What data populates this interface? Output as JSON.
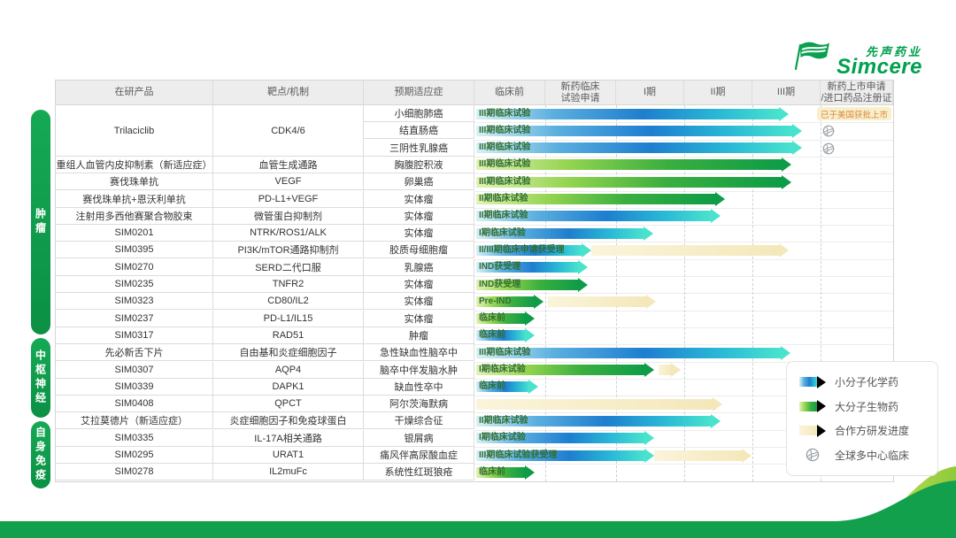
{
  "logo": {
    "company_cn": "先声药业",
    "company_en": "Simcere"
  },
  "legend": {
    "items": [
      {
        "icon": "chem-arrow-icon",
        "label": "小分子化学药"
      },
      {
        "icon": "bio-arrow-icon",
        "label": "大分子生物药"
      },
      {
        "icon": "partner-arrow-icon",
        "label": "合作方研发进度"
      },
      {
        "icon": "globe-icon",
        "label": "全球多中心临床"
      }
    ]
  },
  "colors": {
    "brand_green": "#00a04e",
    "chem_blue": "#1e7ecf",
    "bio_green": "#0e9c47",
    "partner_cream": "#f4e8ba",
    "approved_text": "#d9883a"
  },
  "chart_data": {
    "type": "table",
    "title": "",
    "columns": [
      "在研产品",
      "靶点/机制",
      "预期适应症",
      "临床前",
      "新药临床\n试验申请",
      "I期",
      "II期",
      "III期",
      "新药上市申请\n/进口药品注册证"
    ],
    "groups": [
      {
        "label": "肿瘤",
        "row_start": 0,
        "row_count": 14
      },
      {
        "label": "中枢神经",
        "row_start": 14,
        "row_count": 4
      },
      {
        "label": "自身免疫",
        "row_start": 18,
        "row_count": 4
      }
    ],
    "stage_axis": [
      "临床前",
      "新药临床试验申请",
      "I期",
      "II期",
      "III期",
      "新药上市申请/进口药品注册证"
    ],
    "rows": [
      {
        "product": "Trilaciclib",
        "product_span": 3,
        "target": "CDK4/6",
        "target_span": 3,
        "indication": "小细胞肺癌",
        "modality": "chem",
        "stage_label": "III期临床试验",
        "bar_end": 828,
        "partner": null,
        "post": "approved",
        "post_text": "已于美国获批上市"
      },
      {
        "product": null,
        "product_span": 0,
        "target": null,
        "target_span": 0,
        "indication": "结直肠癌",
        "modality": "chem",
        "stage_label": "III期临床试验",
        "bar_end": 843,
        "partner": null,
        "post": "globe",
        "post_text": null
      },
      {
        "product": null,
        "product_span": 0,
        "target": null,
        "target_span": 0,
        "indication": "三阴性乳腺癌",
        "modality": "chem",
        "stage_label": "III期临床试验",
        "bar_end": 843,
        "partner": null,
        "post": "globe",
        "post_text": null
      },
      {
        "product": "重组人血管内皮抑制素（新适应症）",
        "product_span": 1,
        "target": "血管生成通路",
        "target_span": 1,
        "indication": "胸腹腔积液",
        "modality": "bio",
        "stage_label": "III期临床试验",
        "bar_end": 831,
        "partner": null,
        "post": null,
        "post_text": null
      },
      {
        "product": "赛伐珠单抗",
        "product_span": 1,
        "target": "VEGF",
        "target_span": 1,
        "indication": "卵巢癌",
        "modality": "bio",
        "stage_label": "III期临床试验",
        "bar_end": 831,
        "partner": null,
        "post": null,
        "post_text": null
      },
      {
        "product": "赛伐珠单抗+恩沃利单抗",
        "product_span": 1,
        "target": "PD-L1+VEGF",
        "target_span": 1,
        "indication": "实体瘤",
        "modality": "bio",
        "stage_label": "II期临床试验",
        "bar_end": 756,
        "partner": null,
        "post": null,
        "post_text": null
      },
      {
        "product": "注射用多西他赛聚合物胶束",
        "product_span": 1,
        "target": "微管蛋白抑制剂",
        "target_span": 1,
        "indication": "实体瘤",
        "modality": "chem",
        "stage_label": "II期临床试验",
        "bar_end": 751,
        "partner": null,
        "post": null,
        "post_text": null
      },
      {
        "product": "SIM0201",
        "product_span": 1,
        "target": "NTRK/ROS1/ALK",
        "target_span": 1,
        "indication": "实体瘤",
        "modality": "chem",
        "stage_label": "I期临床试验",
        "bar_end": 675,
        "partner": null,
        "post": null,
        "post_text": null
      },
      {
        "product": "SIM0395",
        "product_span": 1,
        "target": "PI3K/mTOR通路抑制剂",
        "target_span": 1,
        "indication": "胶质母细胞瘤",
        "modality": "chem",
        "stage_label": "II/III期临床申请获受理",
        "bar_end": 605,
        "partner": [
          605,
          828
        ],
        "post": null,
        "post_text": null
      },
      {
        "product": "SIM0270",
        "product_span": 1,
        "target": "SERD二代口服",
        "target_span": 1,
        "indication": "乳腺癌",
        "modality": "chem",
        "stage_label": "IND获受理",
        "bar_end": 601,
        "partner": null,
        "post": null,
        "post_text": null
      },
      {
        "product": "SIM0235",
        "product_span": 1,
        "target": "TNFR2",
        "target_span": 1,
        "indication": "实体瘤",
        "modality": "bio",
        "stage_label": "IND获受理",
        "bar_end": 601,
        "partner": null,
        "post": null,
        "post_text": null
      },
      {
        "product": "SIM0323",
        "product_span": 1,
        "target": "CD80/IL2",
        "target_span": 1,
        "indication": "实体瘤",
        "modality": "bio",
        "stage_label": "Pre-IND",
        "bar_end": 551,
        "partner": [
          556,
          678
        ],
        "post": null,
        "post_text": null
      },
      {
        "product": "SIM0237",
        "product_span": 1,
        "target": "PD-L1/IL15",
        "target_span": 1,
        "indication": "实体瘤",
        "modality": "bio",
        "stage_label": "临床前",
        "bar_end": 541,
        "partner": null,
        "post": null,
        "post_text": null
      },
      {
        "product": "SIM0317",
        "product_span": 1,
        "target": "RAD51",
        "target_span": 1,
        "indication": "肿瘤",
        "modality": "chem",
        "stage_label": "临床前",
        "bar_end": 541,
        "partner": null,
        "post": null,
        "post_text": null
      },
      {
        "product": "先必新舌下片",
        "product_span": 1,
        "target": "自由基和炎症细胞因子",
        "target_span": 1,
        "indication": "急性缺血性脑卒中",
        "modality": "chem",
        "stage_label": "III期临床试验",
        "bar_end": 830,
        "partner": null,
        "post": null,
        "post_text": null
      },
      {
        "product": "SIM0307",
        "product_span": 1,
        "target": "AQP4",
        "target_span": 1,
        "indication": "脑卒中伴发脑水肿",
        "modality": "bio",
        "stage_label": "I期临床试验",
        "bar_end": 676,
        "partner": [
          681,
          706
        ],
        "post": null,
        "post_text": null
      },
      {
        "product": "SIM0339",
        "product_span": 1,
        "target": "DAPK1",
        "target_span": 1,
        "indication": "缺血性卒中",
        "modality": "chem",
        "stage_label": "临床前",
        "bar_end": 545,
        "partner": null,
        "post": null,
        "post_text": null
      },
      {
        "product": "SIM0408",
        "product_span": 1,
        "target": "QPCT",
        "target_span": 1,
        "indication": "阿尔茨海默病",
        "modality": "partner",
        "stage_label": "",
        "bar_end": 753,
        "partner": null,
        "post": null,
        "post_text": null
      },
      {
        "product": "艾拉莫德片（新适应症）",
        "product_span": 1,
        "target": "炎症细胞因子和免疫球蛋白",
        "target_span": 1,
        "indication": "干燥综合征",
        "modality": "chem",
        "stage_label": "II期临床试验",
        "bar_end": 751,
        "partner": null,
        "post": null,
        "post_text": null
      },
      {
        "product": "SIM0335",
        "product_span": 1,
        "target": "IL-17A相关通路",
        "target_span": 1,
        "indication": "银屑病",
        "modality": "chem",
        "stage_label": "I期临床试验",
        "bar_end": 676,
        "partner": null,
        "post": null,
        "post_text": null
      },
      {
        "product": "SIM0295",
        "product_span": 1,
        "target": "URAT1",
        "target_span": 1,
        "indication": "痛风伴高尿酸血症",
        "modality": "chem",
        "stage_label": "III期临床试验获受理",
        "bar_end": 676,
        "partner": [
          676,
          786
        ],
        "post": null,
        "post_text": null
      },
      {
        "product": "SIM0278",
        "product_span": 1,
        "target": "IL2muFc",
        "target_span": 1,
        "indication": "系统性红斑狼疮",
        "modality": "bio",
        "stage_label": "临床前",
        "bar_end": 541,
        "partner": null,
        "post": null,
        "post_text": null
      }
    ]
  }
}
